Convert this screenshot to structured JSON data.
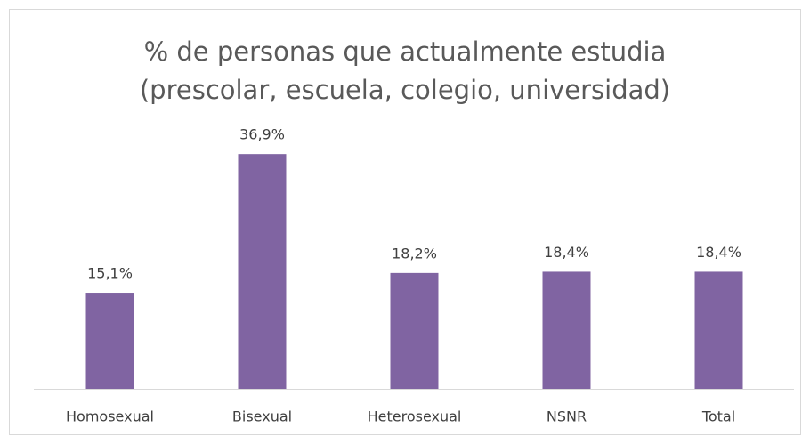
{
  "chart_data": {
    "type": "bar",
    "title": [
      "% de personas que actualmente estudia",
      "(prescolar, escuela, colegio, universidad)"
    ],
    "categories": [
      "Homosexual",
      "Bisexual",
      "Heterosexual",
      "NSNR",
      "Total"
    ],
    "values": [
      15.1,
      36.9,
      18.2,
      18.4,
      18.4
    ],
    "value_labels": [
      "15,1%",
      "36,9%",
      "18,2%",
      "18,4%",
      "18,4%"
    ],
    "color": "#8064a2",
    "ylim": [
      0,
      40
    ]
  }
}
